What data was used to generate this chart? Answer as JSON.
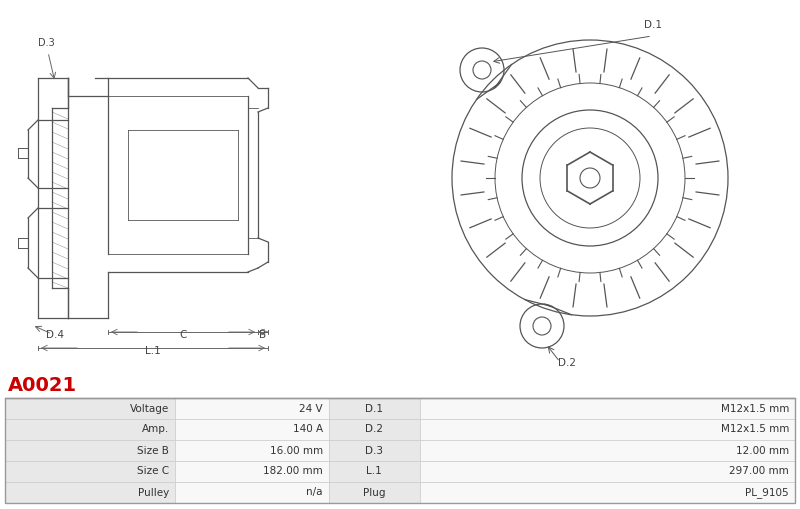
{
  "part_number": "A0021",
  "part_number_color": "#cc0000",
  "table_data": [
    [
      "Voltage",
      "24 V",
      "D.1",
      "M12x1.5 mm"
    ],
    [
      "Amp.",
      "140 A",
      "D.2",
      "M12x1.5 mm"
    ],
    [
      "Size B",
      "16.00 mm",
      "D.3",
      "12.00 mm"
    ],
    [
      "Size C",
      "182.00 mm",
      "L.1",
      "297.00 mm"
    ],
    [
      "Pulley",
      "n/a",
      "Plug",
      "PL_9105"
    ]
  ],
  "row_bg_label": "#e8e8e8",
  "row_bg_value": "#f8f8f8",
  "border_color": "#cccccc",
  "text_color": "#333333",
  "fig_width": 8.0,
  "fig_height": 5.09,
  "drawing_bg": "#ffffff",
  "label_color": "#444444",
  "line_color": "#555555"
}
